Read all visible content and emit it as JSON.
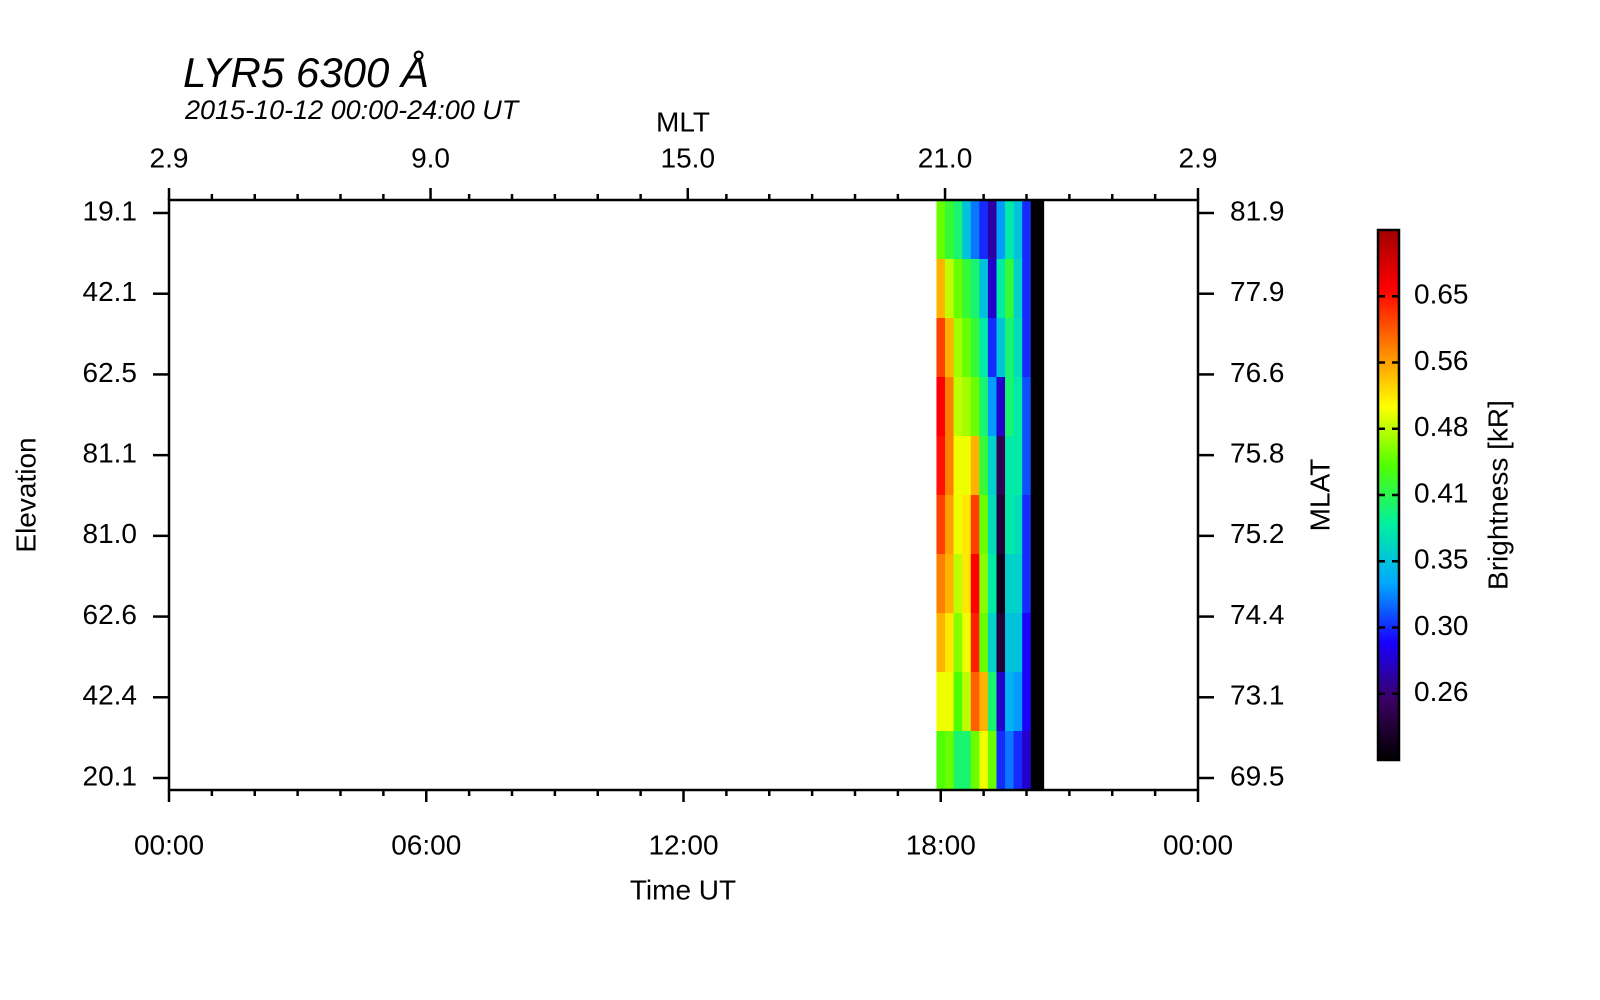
{
  "chart_data": {
    "type": "keogram",
    "title": "LYR5 6300 Å",
    "subtitle": "2015-10-12 00:00-24:00 UT",
    "x_label": "Time UT",
    "x2_label": "MLT",
    "y_label": "Elevation",
    "y2_label": "MLAT",
    "colorbar_label": "Brightness [kR]",
    "xlim": [
      0,
      24
    ],
    "xticks": [
      {
        "value": 0,
        "label": "00:00"
      },
      {
        "value": 6,
        "label": "06:00"
      },
      {
        "value": 12,
        "label": "12:00"
      },
      {
        "value": 18,
        "label": "18:00"
      },
      {
        "value": 24,
        "label": "00:00"
      }
    ],
    "xminorticks": [
      1,
      2,
      3,
      4,
      5,
      7,
      8,
      9,
      10,
      11,
      13,
      14,
      15,
      16,
      17,
      19,
      20,
      21,
      22,
      23
    ],
    "x2lim": [
      2.9,
      26.9
    ],
    "x2ticks": [
      2.9,
      {
        "value": 9,
        "label": "9.0"
      },
      {
        "value": 15,
        "label": "15.0"
      },
      {
        "value": 21,
        "label": "21.0"
      },
      {
        "value": 26.9,
        "label": "2.9"
      }
    ],
    "elevation_labels": [
      "19.1",
      "42.1",
      "62.5",
      "81.1",
      "81.0",
      "62.6",
      "42.4",
      "20.1"
    ],
    "mlat_labels": [
      81.9,
      77.9,
      76.6,
      75.8,
      75.2,
      74.4,
      73.1,
      69.5
    ],
    "x_edges": [
      17.9,
      18.1,
      18.3,
      18.5,
      18.7,
      18.9,
      19.1,
      19.3,
      19.5,
      19.7,
      19.9,
      20.1,
      20.4
    ],
    "values": [
      [
        0.45,
        0.42,
        0.4,
        0.35,
        0.32,
        0.3,
        0.27,
        0.33,
        0.38,
        0.35,
        0.3,
        0.22
      ],
      [
        0.55,
        0.48,
        0.45,
        0.42,
        0.4,
        0.35,
        0.28,
        0.38,
        0.42,
        0.36,
        0.3,
        0.22
      ],
      [
        0.62,
        0.55,
        0.47,
        0.45,
        0.42,
        0.38,
        0.3,
        0.35,
        0.4,
        0.37,
        0.3,
        0.22
      ],
      [
        0.66,
        0.58,
        0.48,
        0.47,
        0.45,
        0.4,
        0.33,
        0.28,
        0.4,
        0.38,
        0.31,
        0.22
      ],
      [
        0.65,
        0.58,
        0.5,
        0.5,
        0.55,
        0.42,
        0.36,
        0.25,
        0.38,
        0.38,
        0.31,
        0.22
      ],
      [
        0.62,
        0.56,
        0.5,
        0.52,
        0.62,
        0.45,
        0.37,
        0.24,
        0.38,
        0.37,
        0.3,
        0.22
      ],
      [
        0.58,
        0.55,
        0.48,
        0.52,
        0.66,
        0.46,
        0.38,
        0.23,
        0.36,
        0.36,
        0.3,
        0.22
      ],
      [
        0.55,
        0.52,
        0.46,
        0.5,
        0.64,
        0.45,
        0.36,
        0.24,
        0.35,
        0.35,
        0.29,
        0.22
      ],
      [
        0.5,
        0.5,
        0.44,
        0.48,
        0.6,
        0.55,
        0.4,
        0.28,
        0.34,
        0.33,
        0.29,
        0.22
      ],
      [
        0.44,
        0.45,
        0.4,
        0.4,
        0.45,
        0.5,
        0.45,
        0.3,
        0.32,
        0.3,
        0.28,
        0.22
      ]
    ],
    "colorbar_ticks": [
      0.26,
      {
        "value": 0.3,
        "label": "0.30"
      },
      0.35,
      0.41,
      0.48,
      0.56,
      0.65
    ],
    "colors": [
      "#000000",
      "#3a0060",
      "#1a00ff",
      "#00a8ff",
      "#00f0a0",
      "#50ff00",
      "#ffff00",
      "#ff8000",
      "#ff0000",
      "#a00000"
    ]
  }
}
